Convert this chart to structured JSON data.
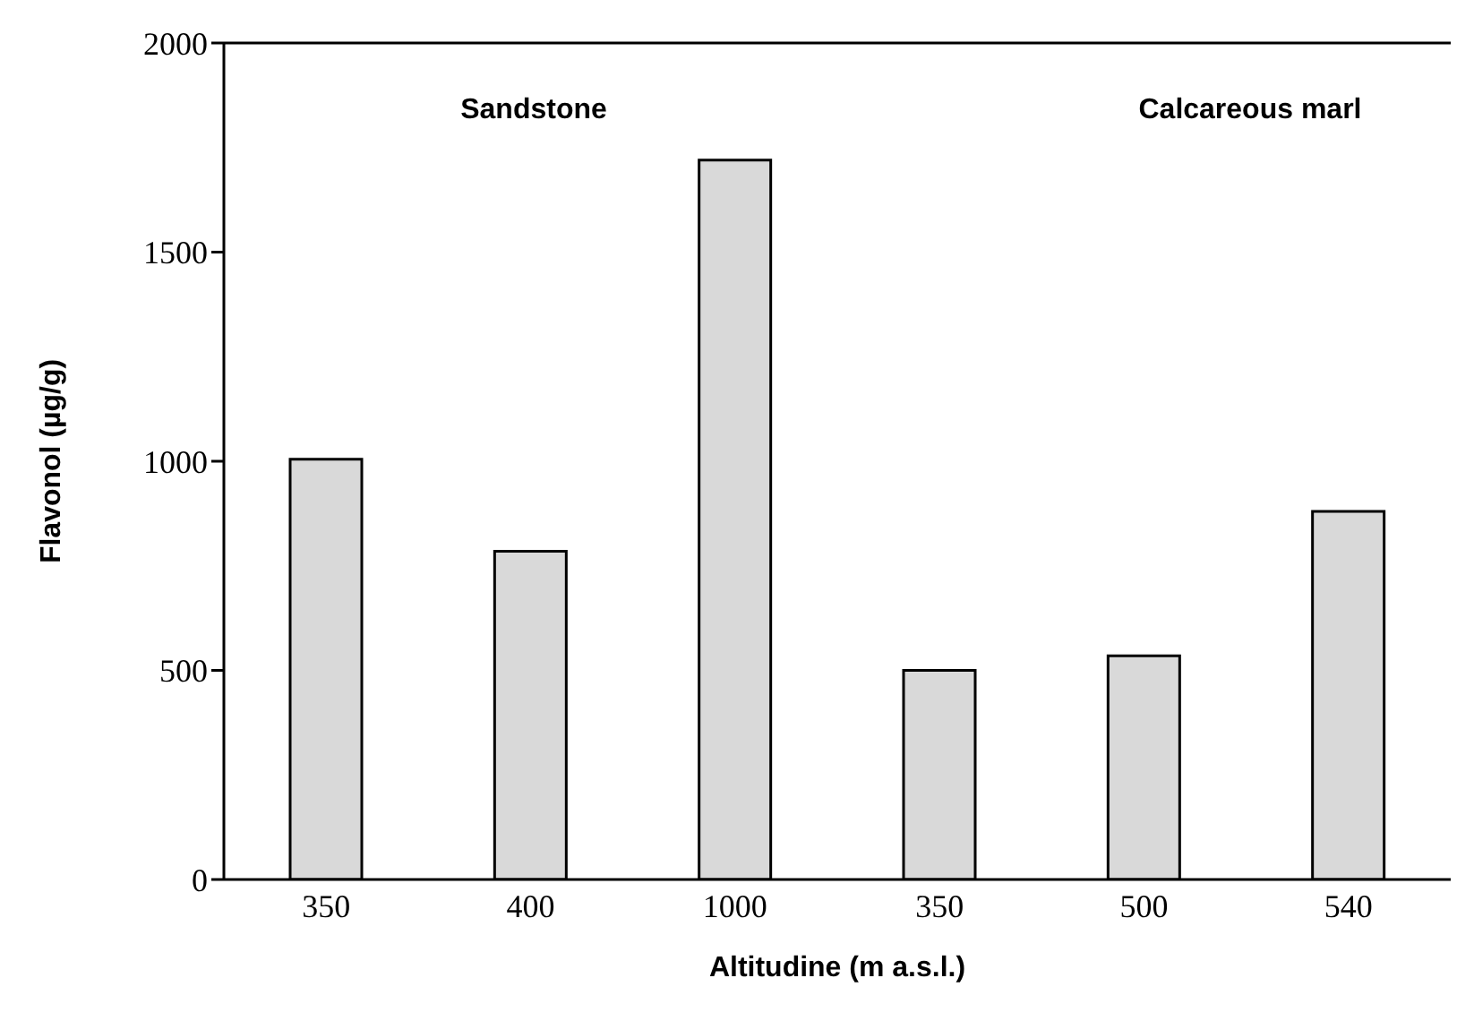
{
  "chart_data": {
    "type": "bar",
    "xlabel": "Altitudine (m a.s.l.)",
    "ylabel": "Flavonol (µg/g)",
    "categories": [
      "350",
      "400",
      "1000",
      "350",
      "500",
      "540"
    ],
    "values": [
      1005,
      785,
      1720,
      500,
      535,
      880
    ],
    "color": "#d9d9d9",
    "ylim": [
      0,
      2000
    ],
    "yticks": [
      0,
      500,
      1000,
      1500,
      2000
    ],
    "annotations": [
      "Sandstone",
      "Calcareous marl"
    ]
  }
}
